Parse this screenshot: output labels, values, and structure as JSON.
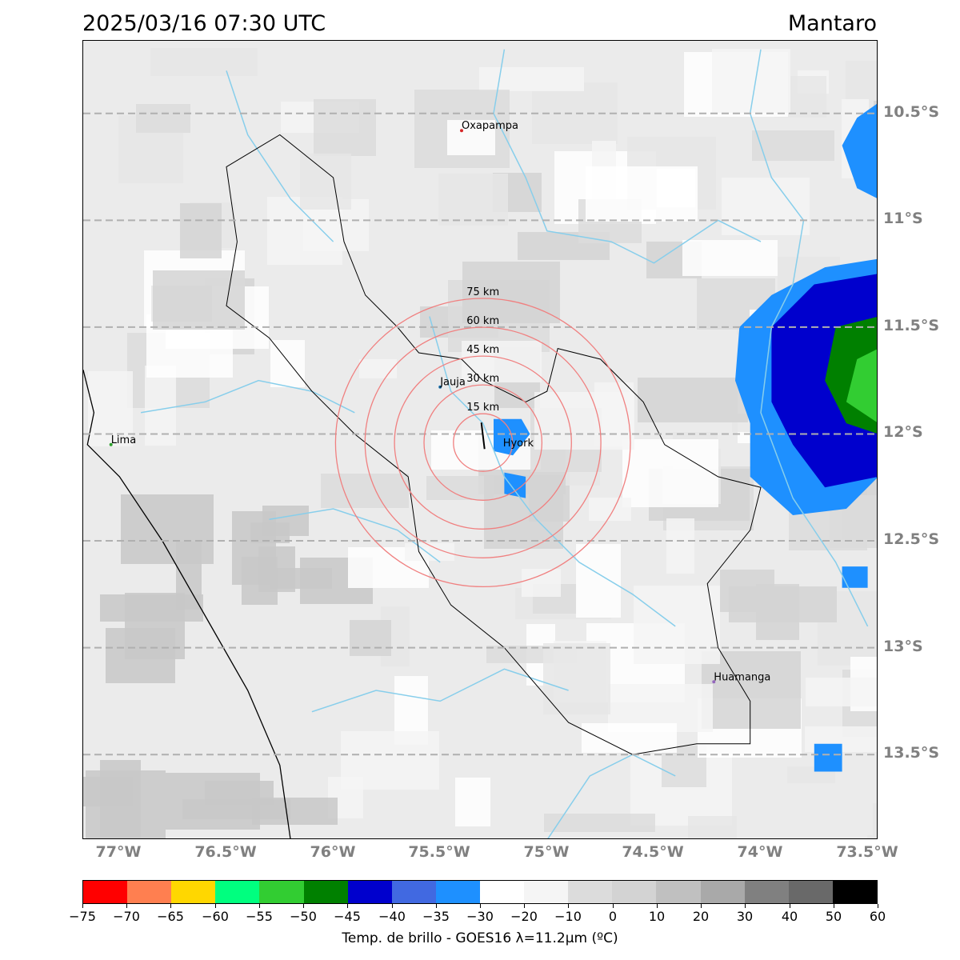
{
  "header": {
    "timestamp": "2025/03/16 07:30 UTC",
    "region": "Mantaro"
  },
  "map": {
    "lon_range": [
      -77.17,
      -73.45
    ],
    "lat_range": [
      -13.9,
      -10.16
    ],
    "lat_gridlines": [
      -10.5,
      -11.0,
      -11.5,
      -12.0,
      -12.5,
      -13.0,
      -13.5
    ],
    "lat_labels": [
      "10.5°S",
      "11°S",
      "11.5°S",
      "12°S",
      "12.5°S",
      "13°S",
      "13.5°S"
    ],
    "lon_ticks": [
      -77.0,
      -76.5,
      -76.0,
      -75.5,
      -75.0,
      -74.5,
      -74.0,
      -73.5
    ],
    "lon_labels": [
      "77°W",
      "76.5°W",
      "76°W",
      "75.5°W",
      "75°W",
      "74.5°W",
      "74°W",
      "73.5°W"
    ],
    "gridline_color": "#b0b0b0",
    "river_color": "#87ceeb",
    "range_ring_color": "#f08080",
    "range_center": {
      "lon": -75.3,
      "lat": -12.04,
      "label": "Hyork"
    },
    "range_rings": [
      {
        "radius_km": 15,
        "label": "15 km"
      },
      {
        "radius_km": 30,
        "label": "30 km"
      },
      {
        "radius_km": 45,
        "label": "45 km"
      },
      {
        "radius_km": 60,
        "label": "60 km"
      },
      {
        "radius_km": 75,
        "label": "75 km"
      }
    ],
    "cities": [
      {
        "name": "Oxapampa",
        "lon": -75.4,
        "lat": -10.58,
        "color": "#d62728"
      },
      {
        "name": "Jauja",
        "lon": -75.5,
        "lat": -11.78,
        "color": "#1f77b4"
      },
      {
        "name": "Lima",
        "lon": -77.04,
        "lat": -12.05,
        "color": "#2ca02c"
      },
      {
        "name": "Huamanga",
        "lon": -74.22,
        "lat": -13.16,
        "color": "#9467bd"
      }
    ]
  },
  "colorbar": {
    "label": "Temp. de brillo - GOES16 λ=11.2μm (ºC)",
    "bounds": [
      "−75",
      "−70",
      "−65",
      "−60",
      "−55",
      "−50",
      "−45",
      "−40",
      "−35",
      "−30",
      "−20",
      "−10",
      "0",
      "10",
      "20",
      "30",
      "40",
      "50",
      "60"
    ],
    "colors": [
      "#ff0000",
      "#ff7f50",
      "#ffd700",
      "#00ff7f",
      "#32cd32",
      "#008000",
      "#0000cd",
      "#4169e1",
      "#1e90ff",
      "#ffffff",
      "#f5f5f5",
      "#dcdcdc",
      "#d3d3d3",
      "#c0c0c0",
      "#a9a9a9",
      "#808080",
      "#696969",
      "#000000"
    ]
  }
}
